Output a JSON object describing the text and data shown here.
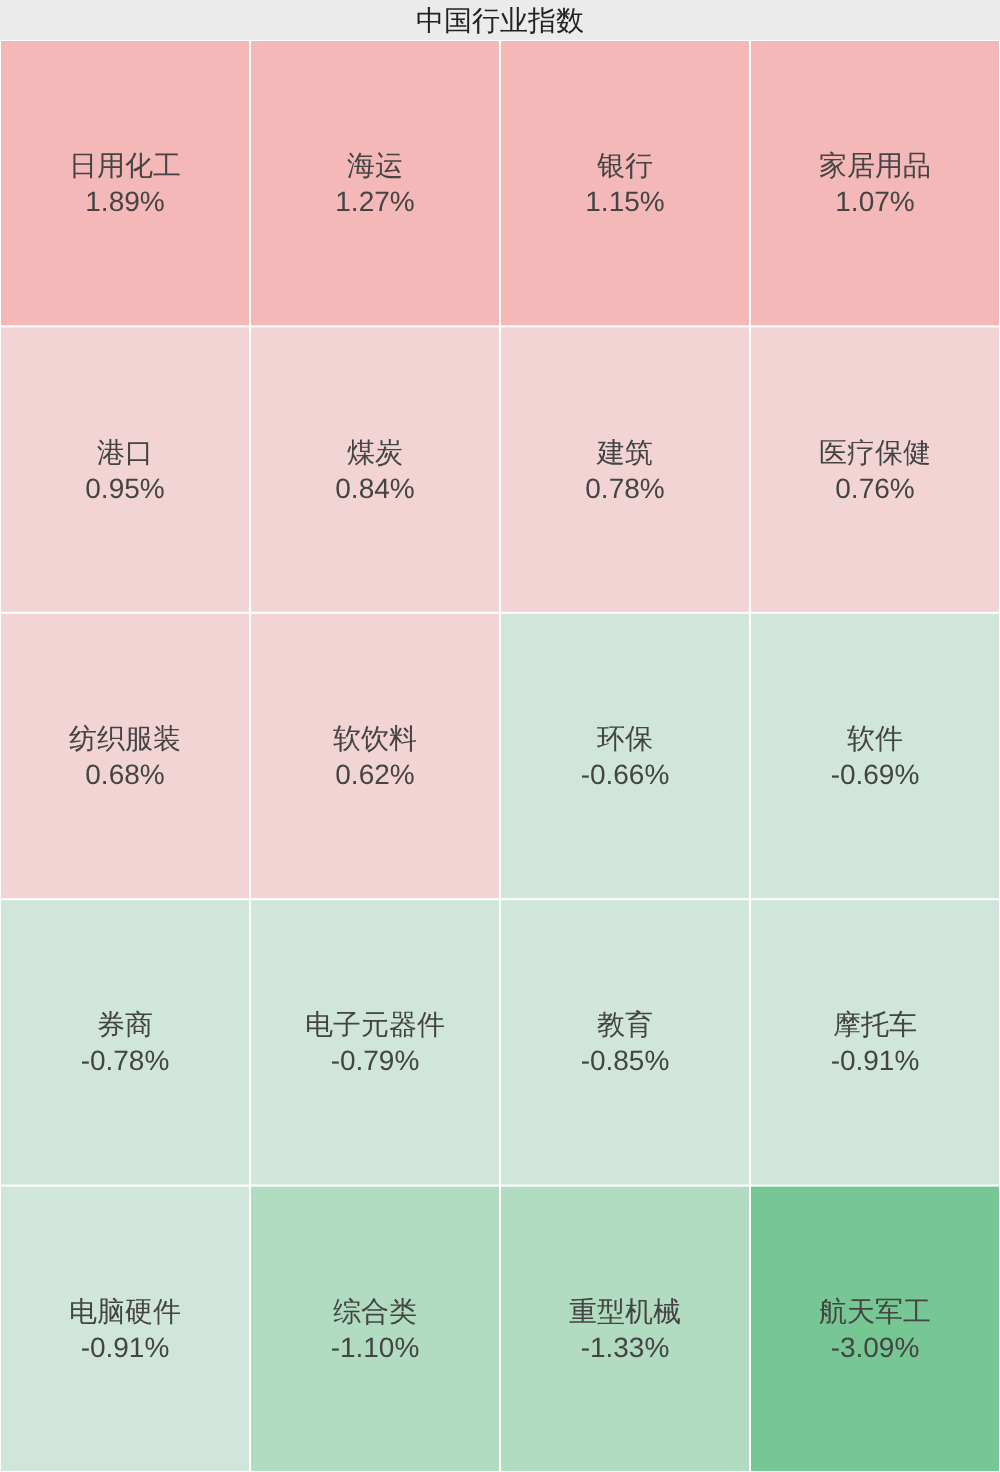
{
  "chart_data": {
    "type": "other",
    "title": "中国行业指数",
    "categories": [
      "日用化工",
      "海运",
      "银行",
      "家居用品",
      "港口",
      "煤炭",
      "建筑",
      "医疗保健",
      "纺织服装",
      "软饮料",
      "环保",
      "软件",
      "券商",
      "电子元器件",
      "教育",
      "摩托车",
      "电脑硬件",
      "综合类",
      "重型机械",
      "航天军工"
    ],
    "values": [
      1.89,
      1.27,
      1.15,
      1.07,
      0.95,
      0.84,
      0.78,
      0.76,
      0.68,
      0.62,
      -0.66,
      -0.69,
      -0.78,
      -0.79,
      -0.85,
      -0.91,
      -0.91,
      -1.1,
      -1.33,
      -3.09
    ],
    "value_labels": [
      "1.89%",
      "1.27%",
      "1.15%",
      "1.07%",
      "0.95%",
      "0.84%",
      "0.78%",
      "0.76%",
      "0.68%",
      "0.62%",
      "-0.66%",
      "-0.69%",
      "-0.78%",
      "-0.79%",
      "-0.85%",
      "-0.91%",
      "-0.91%",
      "-1.10%",
      "-1.33%",
      "-3.09%"
    ]
  }
}
